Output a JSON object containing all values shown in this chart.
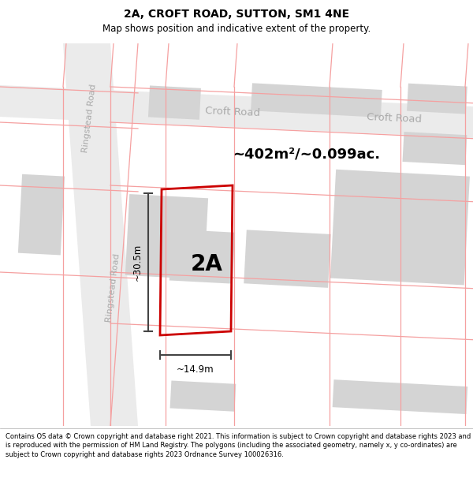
{
  "title": "2A, CROFT ROAD, SUTTON, SM1 4NE",
  "subtitle": "Map shows position and indicative extent of the property.",
  "footer": "Contains OS data © Crown copyright and database right 2021. This information is subject to Crown copyright and database rights 2023 and is reproduced with the permission of HM Land Registry. The polygons (including the associated geometry, namely x, y co-ordinates) are subject to Crown copyright and database rights 2023 Ordnance Survey 100026316.",
  "area_label": "~402m²/~0.099ac.",
  "plot_label": "2A",
  "width_label": "~14.9m",
  "height_label": "~30.5m",
  "road_label_croft_1": "Croft Road",
  "road_label_croft_2": "Croft Road",
  "road_label_ring_1": "Ringstead Road",
  "road_label_ring_2": "Ringstead Road",
  "plot_color": "#cc0000",
  "building_fill": "#d4d4d4",
  "road_fill": "#ebebeb",
  "boundary_color": "#f5a0a0",
  "boundary_lw": 0.9,
  "plot_lw": 2.0,
  "title_fontsize": 10,
  "subtitle_fontsize": 8.5,
  "footer_fontsize": 6.0
}
